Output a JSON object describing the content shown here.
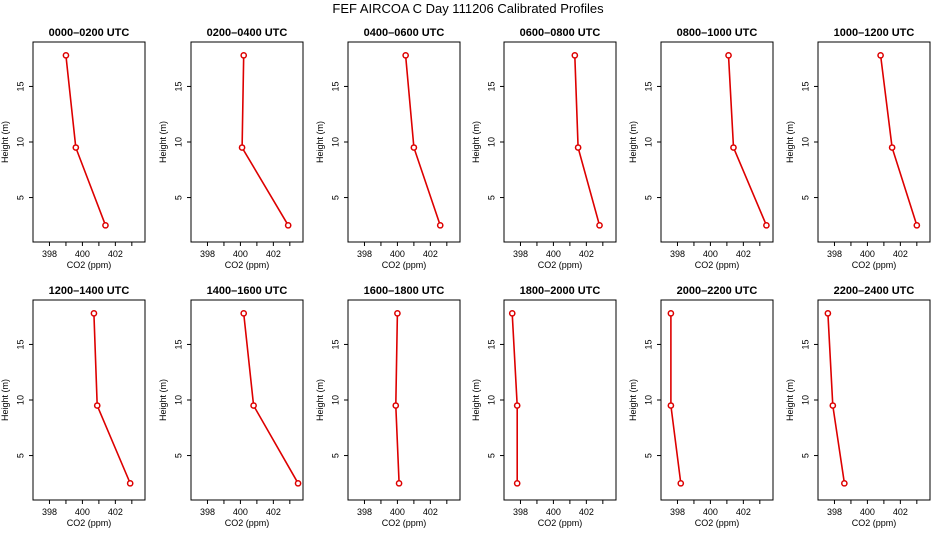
{
  "page": {
    "title": "FEF AIRCOA C  Day 111206  Calibrated Profiles"
  },
  "colors": {
    "line": "#dd0000",
    "marker": "#dd0000",
    "axis": "#000000"
  },
  "chart_data": [
    {
      "type": "line",
      "title": "0000–0200 UTC",
      "xlabel": "CO2 (ppm)",
      "ylabel": "Height (m)",
      "xlim": [
        397,
        403.8
      ],
      "ylim": [
        1,
        19
      ],
      "xticks": [
        "398",
        "400",
        "402"
      ],
      "yticks": [
        "5",
        "10",
        "15"
      ],
      "x": [
        399.0,
        399.6,
        401.4
      ],
      "y": [
        17.8,
        9.5,
        2.5
      ]
    },
    {
      "type": "line",
      "title": "0200–0400 UTC",
      "xlabel": "CO2 (ppm)",
      "ylabel": "Height (m)",
      "xlim": [
        397,
        403.8
      ],
      "ylim": [
        1,
        19
      ],
      "xticks": [
        "398",
        "400",
        "402"
      ],
      "yticks": [
        "5",
        "10",
        "15"
      ],
      "x": [
        400.2,
        400.1,
        402.9
      ],
      "y": [
        17.8,
        9.5,
        2.5
      ]
    },
    {
      "type": "line",
      "title": "0400–0600 UTC",
      "xlabel": "CO2 (ppm)",
      "ylabel": "Height (m)",
      "xlim": [
        397,
        403.8
      ],
      "ylim": [
        1,
        19
      ],
      "xticks": [
        "398",
        "400",
        "402"
      ],
      "yticks": [
        "5",
        "10",
        "15"
      ],
      "x": [
        400.5,
        401.0,
        402.6
      ],
      "y": [
        17.8,
        9.5,
        2.5
      ]
    },
    {
      "type": "line",
      "title": "0600–0800 UTC",
      "xlabel": "CO2 (ppm)",
      "ylabel": "Height (m)",
      "xlim": [
        397,
        403.8
      ],
      "ylim": [
        1,
        19
      ],
      "xticks": [
        "398",
        "400",
        "402"
      ],
      "yticks": [
        "5",
        "10",
        "15"
      ],
      "x": [
        401.3,
        401.5,
        402.8
      ],
      "y": [
        17.8,
        9.5,
        2.5
      ]
    },
    {
      "type": "line",
      "title": "0800–1000 UTC",
      "xlabel": "CO2 (ppm)",
      "ylabel": "Height (m)",
      "xlim": [
        397,
        403.8
      ],
      "ylim": [
        1,
        19
      ],
      "xticks": [
        "398",
        "400",
        "402"
      ],
      "yticks": [
        "5",
        "10",
        "15"
      ],
      "x": [
        401.1,
        401.4,
        403.4
      ],
      "y": [
        17.8,
        9.5,
        2.5
      ]
    },
    {
      "type": "line",
      "title": "1000–1200 UTC",
      "xlabel": "CO2 (ppm)",
      "ylabel": "Height (m)",
      "xlim": [
        397,
        403.8
      ],
      "ylim": [
        1,
        19
      ],
      "xticks": [
        "398",
        "400",
        "402"
      ],
      "yticks": [
        "5",
        "10",
        "15"
      ],
      "x": [
        400.8,
        401.5,
        403.0
      ],
      "y": [
        17.8,
        9.5,
        2.5
      ]
    },
    {
      "type": "line",
      "title": "1200–1400 UTC",
      "xlabel": "CO2 (ppm)",
      "ylabel": "Height (m)",
      "xlim": [
        397,
        403.8
      ],
      "ylim": [
        1,
        19
      ],
      "xticks": [
        "398",
        "400",
        "402"
      ],
      "yticks": [
        "5",
        "10",
        "15"
      ],
      "x": [
        400.7,
        400.9,
        402.9
      ],
      "y": [
        17.8,
        9.5,
        2.5
      ]
    },
    {
      "type": "line",
      "title": "1400–1600 UTC",
      "xlabel": "CO2 (ppm)",
      "ylabel": "Height (m)",
      "xlim": [
        397,
        403.8
      ],
      "ylim": [
        1,
        19
      ],
      "xticks": [
        "398",
        "400",
        "402"
      ],
      "yticks": [
        "5",
        "10",
        "15"
      ],
      "x": [
        400.2,
        400.8,
        403.5
      ],
      "y": [
        17.8,
        9.5,
        2.5
      ]
    },
    {
      "type": "line",
      "title": "1600–1800 UTC",
      "xlabel": "CO2 (ppm)",
      "ylabel": "Height (m)",
      "xlim": [
        397,
        403.8
      ],
      "ylim": [
        1,
        19
      ],
      "xticks": [
        "398",
        "400",
        "402"
      ],
      "yticks": [
        "5",
        "10",
        "15"
      ],
      "x": [
        400.0,
        399.9,
        400.1
      ],
      "y": [
        17.8,
        9.5,
        2.5
      ]
    },
    {
      "type": "line",
      "title": "1800–2000 UTC",
      "xlabel": "CO2 (ppm)",
      "ylabel": "Height (m)",
      "xlim": [
        397,
        403.8
      ],
      "ylim": [
        1,
        19
      ],
      "xticks": [
        "398",
        "400",
        "402"
      ],
      "yticks": [
        "5",
        "10",
        "15"
      ],
      "x": [
        397.5,
        397.8,
        397.8
      ],
      "y": [
        17.8,
        9.5,
        2.5
      ]
    },
    {
      "type": "line",
      "title": "2000–2200 UTC",
      "xlabel": "CO2 (ppm)",
      "ylabel": "Height (m)",
      "xlim": [
        397,
        403.8
      ],
      "ylim": [
        1,
        19
      ],
      "xticks": [
        "398",
        "400",
        "402"
      ],
      "yticks": [
        "5",
        "10",
        "15"
      ],
      "x": [
        397.6,
        397.6,
        398.2
      ],
      "y": [
        17.8,
        9.5,
        2.5
      ]
    },
    {
      "type": "line",
      "title": "2200–2400 UTC",
      "xlabel": "CO2 (ppm)",
      "ylabel": "Height (m)",
      "xlim": [
        397,
        403.8
      ],
      "ylim": [
        1,
        19
      ],
      "xticks": [
        "398",
        "400",
        "402"
      ],
      "yticks": [
        "5",
        "10",
        "15"
      ],
      "x": [
        397.6,
        397.9,
        398.6
      ],
      "y": [
        17.8,
        9.5,
        2.5
      ]
    }
  ]
}
